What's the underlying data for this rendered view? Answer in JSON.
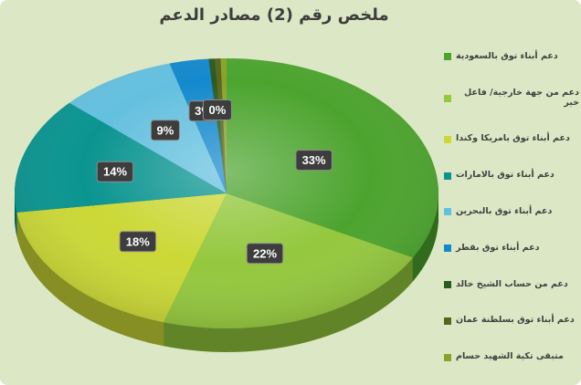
{
  "title": "ملخص رقم (2)  مصادر الدعم",
  "colors": {
    "background": "#dce8c5",
    "title_text": "#3d3d3d",
    "label_box": "#3d3d3d",
    "label_text": "#ffffff",
    "legend_text": "#404040"
  },
  "chart_data": {
    "type": "pie",
    "style": "3d",
    "title": "ملخص رقم (2)  مصادر الدعم",
    "legend_position": "right",
    "total_percent": 100,
    "series": [
      {
        "name": "دعم أبناء توق بالسعودية",
        "value": 33,
        "data_label": "33%",
        "color": "#4ca42e"
      },
      {
        "name": "دعم من جهة خارجية/ فاعل خير",
        "value": 22,
        "data_label": "22%",
        "color": "#94c83e"
      },
      {
        "name": "دعم أبناء توق بامريكا وكندا",
        "value": 18,
        "data_label": "18%",
        "color": "#cbd836"
      },
      {
        "name": "دعم أبناء توق بالامارات",
        "value": 14,
        "data_label": "14%",
        "color": "#0a9490"
      },
      {
        "name": "دعم أبناء توق بالبحرين",
        "value": 9,
        "data_label": "9%",
        "color": "#64c0df"
      },
      {
        "name": "دعم أبناء توق بقطر",
        "value": 3,
        "data_label": "3%",
        "color": "#1489cd"
      },
      {
        "name": "دعم من حساب الشيخ خالد",
        "value": 0,
        "data_label": "0%",
        "color": "#2d5a21"
      },
      {
        "name": "دعم أبناء توق بسلطنة عمان",
        "value": 0,
        "data_label": "",
        "color": "#57651e"
      },
      {
        "name": "متبقى تكية الشهيد حسام",
        "value": 0,
        "data_label": "",
        "color": "#8aa22a"
      }
    ]
  }
}
